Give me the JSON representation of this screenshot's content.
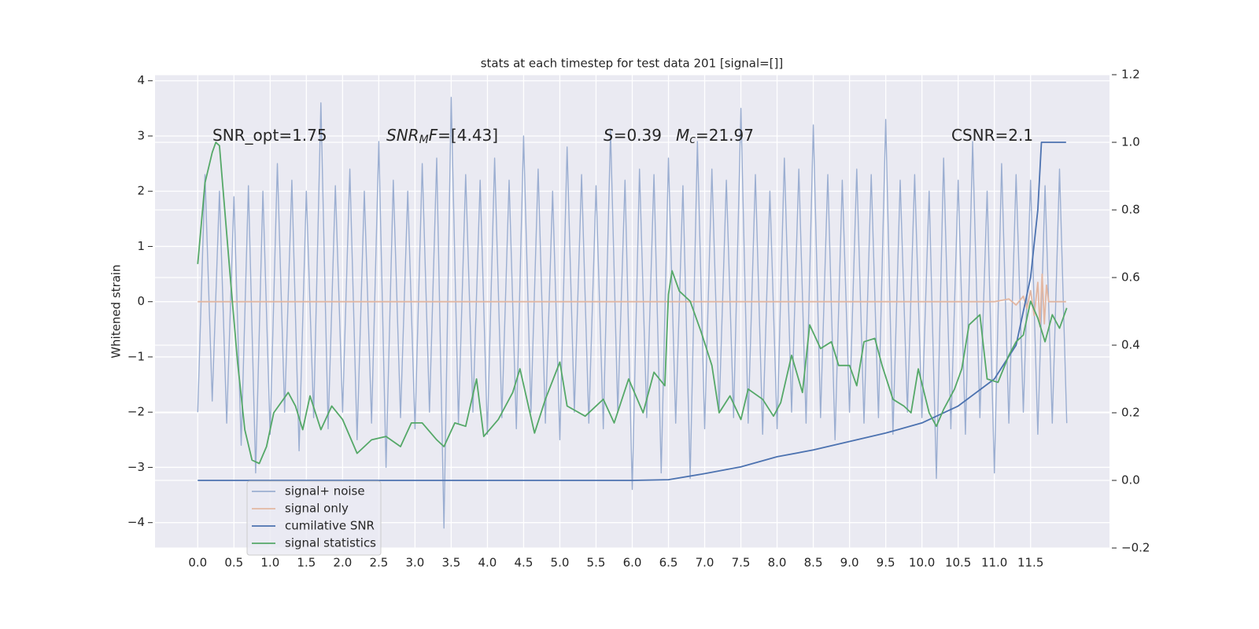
{
  "chart_data": {
    "type": "line",
    "title": "stats at each timestep for test data 201 [signal=[]]",
    "ylabel": "Whitened strain",
    "background": "#eaeaf2",
    "grid": true,
    "xlim": [
      -0.59,
      12.59
    ],
    "ylim": [
      -4.46,
      4.11
    ],
    "y2lim": [
      -0.2,
      1.2
    ],
    "xticks": [
      {
        "value": 0,
        "label": "0.0"
      },
      0.5,
      {
        "value": 1,
        "label": "1.0"
      },
      1.5,
      {
        "value": 2,
        "label": "2.0"
      },
      2.5,
      {
        "value": 3,
        "label": "3.0"
      },
      3.5,
      {
        "value": 4,
        "label": "4.0"
      },
      4.5,
      {
        "value": 5,
        "label": "5.0"
      },
      5.5,
      {
        "value": 6,
        "label": "6.0"
      },
      6.5,
      {
        "value": 7,
        "label": "7.0"
      },
      7.5,
      {
        "value": 8,
        "label": "8.0"
      },
      8.5,
      {
        "value": 9,
        "label": "9.0"
      },
      9.5,
      {
        "value": 10,
        "label": "10.0"
      },
      10.5,
      {
        "value": 11,
        "label": "11.0"
      },
      11.5
    ],
    "yticks": [
      {
        "value": -4,
        "label": "−4"
      },
      {
        "value": -3,
        "label": "−3"
      },
      {
        "value": -2,
        "label": "−2"
      },
      {
        "value": -1,
        "label": "−1"
      },
      0,
      1,
      2,
      3,
      4
    ],
    "y2ticks": [
      {
        "value": -0.2,
        "label": "−0.2"
      },
      {
        "value": 0,
        "label": "0.0"
      },
      0.2,
      0.4,
      0.6,
      0.8,
      {
        "value": 1,
        "label": "1.0"
      },
      1.2
    ],
    "annotations": [
      [
        {
          "text": "SNR_opt=1.75",
          "style": "normal"
        }
      ],
      [
        {
          "text": "SNR",
          "style": "italic"
        },
        {
          "text": "M",
          "style": "sub"
        },
        {
          "text": "F",
          "style": "italic"
        },
        {
          "text": "=[4.43]",
          "style": "normal"
        }
      ],
      [
        {
          "text": "S",
          "style": "italic"
        },
        {
          "text": "=0.39",
          "style": "normal"
        }
      ],
      [
        {
          "text": "M",
          "style": "italic"
        },
        {
          "text": "c",
          "style": "sub"
        },
        {
          "text": "=21.97",
          "style": "normal"
        }
      ],
      [
        {
          "text": "CSNR=2.1",
          "style": "normal"
        }
      ]
    ],
    "series": [
      {
        "name": "signal+ noise",
        "color": "#9baed1",
        "axis": "y",
        "x": [
          0,
          0.1,
          0.2,
          0.3,
          0.4,
          0.5,
          0.6,
          0.7,
          0.8,
          0.9,
          1,
          1.1,
          1.2,
          1.3,
          1.4,
          1.5,
          1.6,
          1.7,
          1.8,
          1.9,
          2,
          2.1,
          2.2,
          2.3,
          2.4,
          2.5,
          2.6,
          2.7,
          2.8,
          2.9,
          3,
          3.1,
          3.2,
          3.3,
          3.4,
          3.5,
          3.6,
          3.7,
          3.8,
          3.9,
          4,
          4.1,
          4.2,
          4.3,
          4.4,
          4.5,
          4.6,
          4.7,
          4.8,
          4.9,
          5,
          5.1,
          5.2,
          5.3,
          5.4,
          5.5,
          5.6,
          5.7,
          5.8,
          5.9,
          6,
          6.1,
          6.2,
          6.3,
          6.4,
          6.5,
          6.6,
          6.7,
          6.8,
          6.9,
          7,
          7.1,
          7.2,
          7.3,
          7.4,
          7.5,
          7.6,
          7.7,
          7.8,
          7.9,
          8,
          8.1,
          8.2,
          8.3,
          8.4,
          8.5,
          8.6,
          8.7,
          8.8,
          8.9,
          9,
          9.1,
          9.2,
          9.3,
          9.4,
          9.5,
          9.6,
          9.7,
          9.8,
          9.9,
          10,
          10.1,
          10.2,
          10.3,
          10.4,
          10.5,
          10.6,
          10.7,
          10.8,
          10.9,
          11,
          11.1,
          11.2,
          11.3,
          11.4,
          11.5,
          11.6,
          11.7,
          11.8,
          11.9,
          12
        ],
        "values": [
          -2.0,
          2.3,
          -1.8,
          2.0,
          -2.2,
          1.9,
          -2.6,
          2.1,
          -3.1,
          2.0,
          -2.4,
          2.5,
          -2.0,
          2.2,
          -2.7,
          2.0,
          -2.1,
          3.6,
          -2.3,
          2.1,
          -2.0,
          2.4,
          -2.5,
          2.0,
          -2.2,
          2.9,
          -3.0,
          2.2,
          -2.1,
          2.0,
          -2.3,
          2.5,
          -2.0,
          2.6,
          -4.1,
          3.7,
          -2.2,
          2.3,
          -2.0,
          2.2,
          -2.4,
          2.6,
          -2.1,
          2.2,
          -2.3,
          3.0,
          -2.0,
          2.4,
          -2.2,
          2.0,
          -2.5,
          2.8,
          -2.0,
          2.3,
          -2.2,
          2.1,
          -2.3,
          3.1,
          -2.0,
          2.2,
          -3.4,
          2.4,
          -2.1,
          2.3,
          -3.1,
          2.6,
          -2.2,
          2.1,
          -3.2,
          2.9,
          -2.3,
          2.4,
          -2.0,
          2.2,
          -2.1,
          3.5,
          -2.2,
          2.3,
          -2.4,
          2.0,
          -2.3,
          2.6,
          -2.0,
          2.4,
          -2.2,
          3.2,
          -2.1,
          2.3,
          -2.5,
          2.2,
          -2.0,
          2.4,
          -2.2,
          2.3,
          -2.1,
          3.3,
          -2.4,
          2.2,
          -2.0,
          2.3,
          -2.1,
          2.0,
          -3.2,
          2.6,
          -2.3,
          2.2,
          -2.4,
          2.9,
          -2.1,
          2.0,
          -3.1,
          2.5,
          -2.2,
          2.3,
          -2.0,
          2.2,
          -2.4,
          2.1,
          -2.2,
          2.4,
          -2.2
        ]
      },
      {
        "name": "signal only",
        "color": "#e3b7a2",
        "axis": "y",
        "x": [
          0,
          11.0,
          11.2,
          11.3,
          11.4,
          11.45,
          11.5,
          11.55,
          11.6,
          11.63,
          11.66,
          11.69,
          11.72,
          11.75,
          11.99
        ],
        "values": [
          0,
          0,
          0.05,
          -0.06,
          0.1,
          -0.12,
          0.2,
          -0.25,
          0.35,
          -0.45,
          0.5,
          -0.4,
          0.3,
          0,
          0
        ]
      },
      {
        "name": "cumilative SNR",
        "color": "#4c72b0",
        "axis": "y2",
        "x": [
          0,
          6.0,
          6.5,
          7.0,
          7.5,
          8.0,
          8.5,
          9.0,
          9.5,
          10.0,
          10.5,
          11.0,
          11.3,
          11.5,
          11.6,
          11.65,
          11.99
        ],
        "values": [
          0,
          0,
          0.002,
          0.02,
          0.04,
          0.07,
          0.09,
          0.115,
          0.14,
          0.17,
          0.22,
          0.3,
          0.4,
          0.6,
          0.8,
          1.0,
          1.0
        ]
      },
      {
        "name": "signal statistics",
        "color": "#55a868",
        "axis": "y2",
        "x": [
          0,
          0.1,
          0.2,
          0.25,
          0.3,
          0.45,
          0.55,
          0.65,
          0.75,
          0.85,
          0.95,
          1.05,
          1.25,
          1.35,
          1.45,
          1.55,
          1.7,
          1.85,
          2.0,
          2.2,
          2.4,
          2.6,
          2.8,
          2.95,
          3.1,
          3.3,
          3.4,
          3.55,
          3.7,
          3.85,
          3.95,
          4.15,
          4.35,
          4.45,
          4.65,
          4.8,
          5.0,
          5.1,
          5.35,
          5.6,
          5.75,
          5.95,
          6.15,
          6.3,
          6.45,
          6.5,
          6.55,
          6.65,
          6.8,
          6.95,
          7.1,
          7.2,
          7.35,
          7.5,
          7.6,
          7.8,
          7.95,
          8.05,
          8.2,
          8.35,
          8.45,
          8.6,
          8.75,
          8.85,
          9.0,
          9.1,
          9.2,
          9.35,
          9.45,
          9.6,
          9.75,
          9.85,
          9.95,
          10.1,
          10.2,
          10.3,
          10.45,
          10.55,
          10.65,
          10.8,
          10.9,
          11.05,
          11.2,
          11.3,
          11.4,
          11.5,
          11.6,
          11.7,
          11.8,
          11.9,
          12.0
        ],
        "values": [
          0.64,
          0.88,
          0.97,
          1.0,
          0.99,
          0.6,
          0.35,
          0.15,
          0.06,
          0.05,
          0.1,
          0.2,
          0.26,
          0.22,
          0.15,
          0.25,
          0.15,
          0.22,
          0.18,
          0.08,
          0.12,
          0.13,
          0.1,
          0.17,
          0.17,
          0.12,
          0.1,
          0.17,
          0.16,
          0.3,
          0.13,
          0.18,
          0.26,
          0.33,
          0.14,
          0.24,
          0.35,
          0.22,
          0.19,
          0.24,
          0.17,
          0.3,
          0.2,
          0.32,
          0.28,
          0.55,
          0.62,
          0.56,
          0.53,
          0.44,
          0.34,
          0.2,
          0.25,
          0.18,
          0.27,
          0.24,
          0.19,
          0.23,
          0.37,
          0.26,
          0.46,
          0.39,
          0.41,
          0.34,
          0.34,
          0.28,
          0.41,
          0.42,
          0.34,
          0.24,
          0.22,
          0.2,
          0.33,
          0.2,
          0.16,
          0.21,
          0.27,
          0.33,
          0.46,
          0.49,
          0.3,
          0.29,
          0.37,
          0.41,
          0.43,
          0.53,
          0.48,
          0.41,
          0.49,
          0.45,
          0.51
        ]
      }
    ]
  }
}
